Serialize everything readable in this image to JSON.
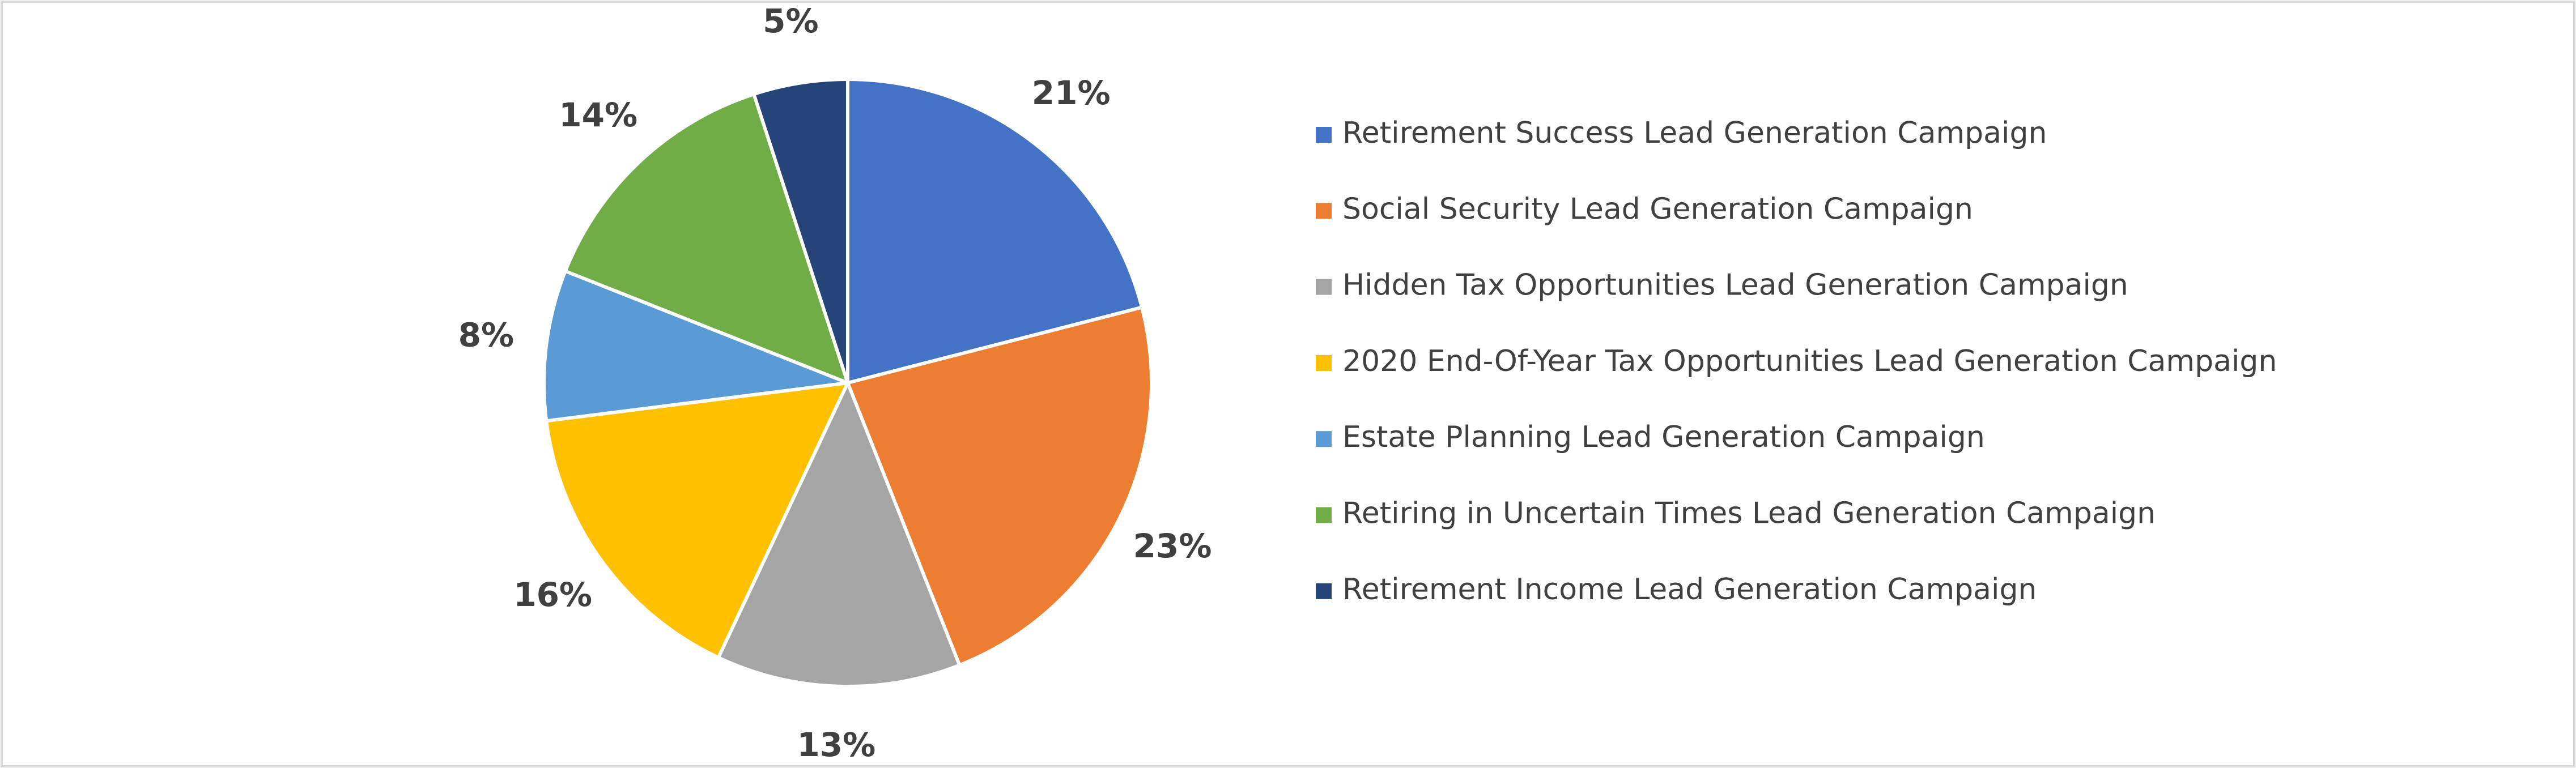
{
  "chart_data": {
    "type": "pie",
    "categories": [
      "Retirement Success Lead Generation Campaign",
      "Social Security Lead Generation Campaign",
      "Hidden Tax Opportunities Lead Generation Campaign",
      "2020 End-Of-Year Tax Opportunities Lead Generation Campaign",
      "Estate Planning Lead Generation Campaign",
      "Retiring in Uncertain Times Lead Generation Campaign",
      "Retirement Income Lead Generation Campaign"
    ],
    "values": [
      21,
      23,
      13,
      16,
      8,
      14,
      5
    ],
    "value_labels": [
      "21%",
      "23%",
      "13%",
      "16%",
      "8%",
      "14%",
      "5%"
    ],
    "colors": [
      "#4472c4",
      "#ed7d31",
      "#a5a5a5",
      "#ffc000",
      "#5b9bd5",
      "#70ad47",
      "#264478"
    ],
    "legend": "right"
  }
}
